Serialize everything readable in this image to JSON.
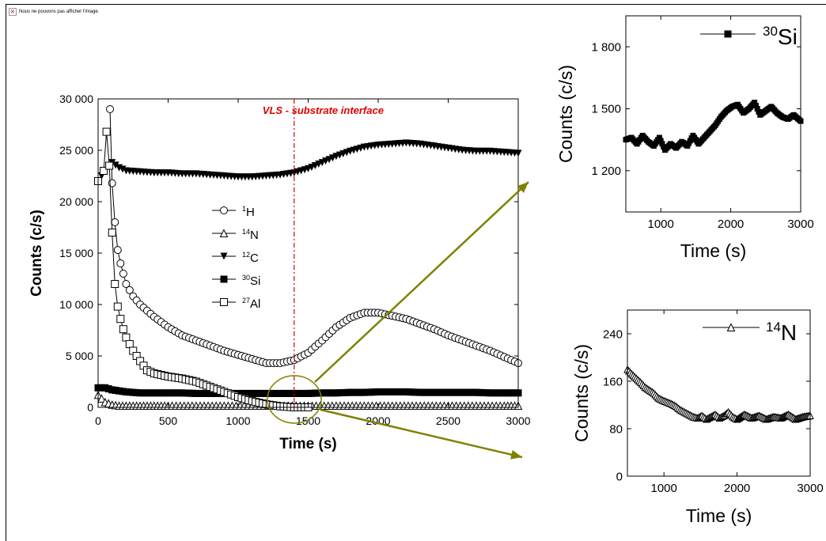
{
  "broken_image": {
    "icon": "broken-image-icon",
    "text": "Nous ne pouvons pas afficher l'image."
  },
  "colors": {
    "arrow": "#808000",
    "annotation": "#e00000",
    "marker": "#000000"
  },
  "chart_data": [
    {
      "type": "scatter",
      "id": "main",
      "xlabel": "Time  (s)",
      "ylabel": "Counts (c/s)",
      "xlim": [
        0,
        3000
      ],
      "ylim": [
        0,
        30000
      ],
      "xticks": [
        0,
        500,
        1000,
        1500,
        2000,
        2500,
        3000
      ],
      "xtick_labels": [
        "0",
        "500",
        "1000",
        "1500",
        "2000",
        "2500",
        "3000"
      ],
      "yticks": [
        0,
        5000,
        10000,
        15000,
        20000,
        25000,
        30000
      ],
      "ytick_labels": [
        "0",
        "5 000",
        "10 000",
        "15 000",
        "20 000",
        "25 000",
        "30 000"
      ],
      "annotation": {
        "text": "VLS - substrate interface",
        "x": 1400
      },
      "legend_position": "center",
      "series": [
        {
          "name": "1H",
          "sup": "1",
          "sub": "H",
          "marker": "circle-open",
          "x": [
            85,
            100,
            120,
            140,
            160,
            180,
            200,
            250,
            300,
            350,
            400,
            500,
            600,
            700,
            800,
            900,
            1000,
            1100,
            1200,
            1300,
            1400,
            1500,
            1600,
            1700,
            1800,
            1900,
            2000,
            2100,
            2200,
            2300,
            2400,
            2500,
            2600,
            2700,
            2800,
            2900,
            3000
          ],
          "y": [
            29000,
            21800,
            18000,
            15300,
            14000,
            13000,
            12000,
            10800,
            10000,
            9400,
            8800,
            7800,
            7000,
            6500,
            6000,
            5500,
            5100,
            4700,
            4300,
            4300,
            4600,
            5300,
            6500,
            7800,
            8700,
            9200,
            9200,
            8900,
            8600,
            8100,
            7600,
            7000,
            6500,
            6000,
            5500,
            4900,
            4300
          ]
        },
        {
          "name": "14N",
          "sup": "14",
          "sub": "N",
          "marker": "triangle-up-open",
          "x": [
            0,
            50,
            100,
            150,
            200,
            300,
            400,
            500,
            700,
            900,
            1100,
            1300,
            1500,
            1700,
            1900,
            2100,
            2300,
            2500,
            2700,
            2900,
            3000
          ],
          "y": [
            1200,
            500,
            250,
            150,
            150,
            150,
            150,
            150,
            150,
            150,
            150,
            150,
            150,
            150,
            150,
            150,
            150,
            150,
            150,
            150,
            150
          ]
        },
        {
          "name": "12C",
          "sup": "12",
          "sub": "C",
          "marker": "triangle-down-filled",
          "x": [
            0,
            50,
            100,
            150,
            200,
            300,
            400,
            500,
            600,
            700,
            800,
            900,
            1000,
            1100,
            1200,
            1300,
            1400,
            1500,
            1600,
            1700,
            1800,
            1900,
            2000,
            2100,
            2200,
            2300,
            2400,
            2500,
            2600,
            2700,
            2800,
            2900,
            3000
          ],
          "y": [
            22000,
            23000,
            23800,
            23300,
            23000,
            22900,
            22800,
            22800,
            22700,
            22700,
            22600,
            22500,
            22400,
            22400,
            22500,
            22600,
            22800,
            23200,
            23800,
            24400,
            24900,
            25300,
            25500,
            25600,
            25700,
            25600,
            25400,
            25200,
            25000,
            24900,
            24900,
            24800,
            24700
          ]
        },
        {
          "name": "30Si",
          "sup": "30",
          "sub": "Si",
          "marker": "square-filled",
          "x": [
            0,
            50,
            100,
            200,
            300,
            400,
            500,
            600,
            700,
            800,
            900,
            1000,
            1100,
            1200,
            1300,
            1400,
            1500,
            1600,
            1700,
            1800,
            1900,
            2000,
            2100,
            2200,
            2300,
            2400,
            2500,
            2600,
            2700,
            2800,
            2900,
            3000
          ],
          "y": [
            1900,
            1900,
            1700,
            1500,
            1400,
            1400,
            1400,
            1400,
            1350,
            1350,
            1350,
            1350,
            1350,
            1350,
            1350,
            1350,
            1350,
            1400,
            1400,
            1450,
            1450,
            1500,
            1500,
            1500,
            1450,
            1450,
            1450,
            1450,
            1450,
            1400,
            1400,
            1400
          ]
        },
        {
          "name": "27Al",
          "sup": "27",
          "sub": "Al",
          "marker": "square-open",
          "x": [
            0,
            40,
            60,
            80,
            100,
            120,
            140,
            160,
            180,
            200,
            250,
            300,
            350,
            400,
            500,
            600,
            700,
            800,
            900,
            1000,
            1100,
            1200,
            1300,
            1400,
            1500
          ],
          "y": [
            22000,
            23000,
            26800,
            23500,
            17000,
            12000,
            9800,
            8600,
            7600,
            6800,
            5500,
            4500,
            3600,
            3300,
            3000,
            2800,
            2500,
            2000,
            1500,
            1000,
            600,
            300,
            100,
            0,
            0
          ]
        }
      ]
    },
    {
      "type": "scatter",
      "id": "si-inset",
      "xlabel": "Time  (s)",
      "ylabel": "Counts (c/s)",
      "xlim": [
        500,
        3000
      ],
      "ylim": [
        1000,
        1950
      ],
      "xticks": [
        1000,
        2000,
        3000
      ],
      "xtick_labels": [
        "1000",
        "2000",
        "3000"
      ],
      "yticks": [
        1200,
        1500,
        1800
      ],
      "ytick_labels": [
        "1 200",
        "1 500",
        "1 800"
      ],
      "legend": {
        "sup": "30",
        "sub": "Si"
      },
      "series": [
        {
          "name": "30Si",
          "marker": "square-filled",
          "x": [
            500,
            580,
            660,
            740,
            820,
            900,
            980,
            1060,
            1140,
            1220,
            1300,
            1380,
            1460,
            1540,
            1620,
            1700,
            1780,
            1860,
            1940,
            2020,
            2100,
            2180,
            2260,
            2340,
            2420,
            2500,
            2580,
            2660,
            2740,
            2820,
            2900,
            3000
          ],
          "y": [
            1350,
            1360,
            1330,
            1370,
            1340,
            1320,
            1360,
            1300,
            1330,
            1310,
            1340,
            1320,
            1370,
            1330,
            1360,
            1390,
            1420,
            1460,
            1490,
            1510,
            1520,
            1480,
            1500,
            1530,
            1470,
            1490,
            1510,
            1480,
            1460,
            1450,
            1470,
            1440
          ]
        }
      ]
    },
    {
      "type": "scatter",
      "id": "n-inset",
      "xlabel": "Time  (s)",
      "ylabel": "Counts (c/s)",
      "xlim": [
        500,
        3000
      ],
      "ylim": [
        0,
        280
      ],
      "xticks": [
        1000,
        2000,
        3000
      ],
      "xtick_labels": [
        "1000",
        "2000",
        "3000"
      ],
      "yticks": [
        0,
        80,
        160,
        240
      ],
      "ytick_labels": [
        "0",
        "80",
        "160",
        "240"
      ],
      "legend": {
        "sup": "14",
        "sub": "N"
      },
      "series": [
        {
          "name": "14N",
          "marker": "triangle-up-open",
          "x": [
            500,
            560,
            620,
            680,
            740,
            800,
            860,
            920,
            980,
            1040,
            1100,
            1160,
            1220,
            1280,
            1340,
            1400,
            1460,
            1520,
            1580,
            1640,
            1700,
            1760,
            1820,
            1880,
            1940,
            2000,
            2100,
            2200,
            2300,
            2400,
            2500,
            2600,
            2700,
            2800,
            2900,
            3000
          ],
          "y": [
            180,
            172,
            165,
            158,
            150,
            145,
            140,
            132,
            128,
            125,
            122,
            118,
            112,
            108,
            104,
            100,
            98,
            102,
            96,
            100,
            104,
            98,
            102,
            108,
            100,
            96,
            104,
            98,
            102,
            96,
            100,
            98,
            104,
            96,
            100,
            102
          ]
        }
      ]
    }
  ]
}
